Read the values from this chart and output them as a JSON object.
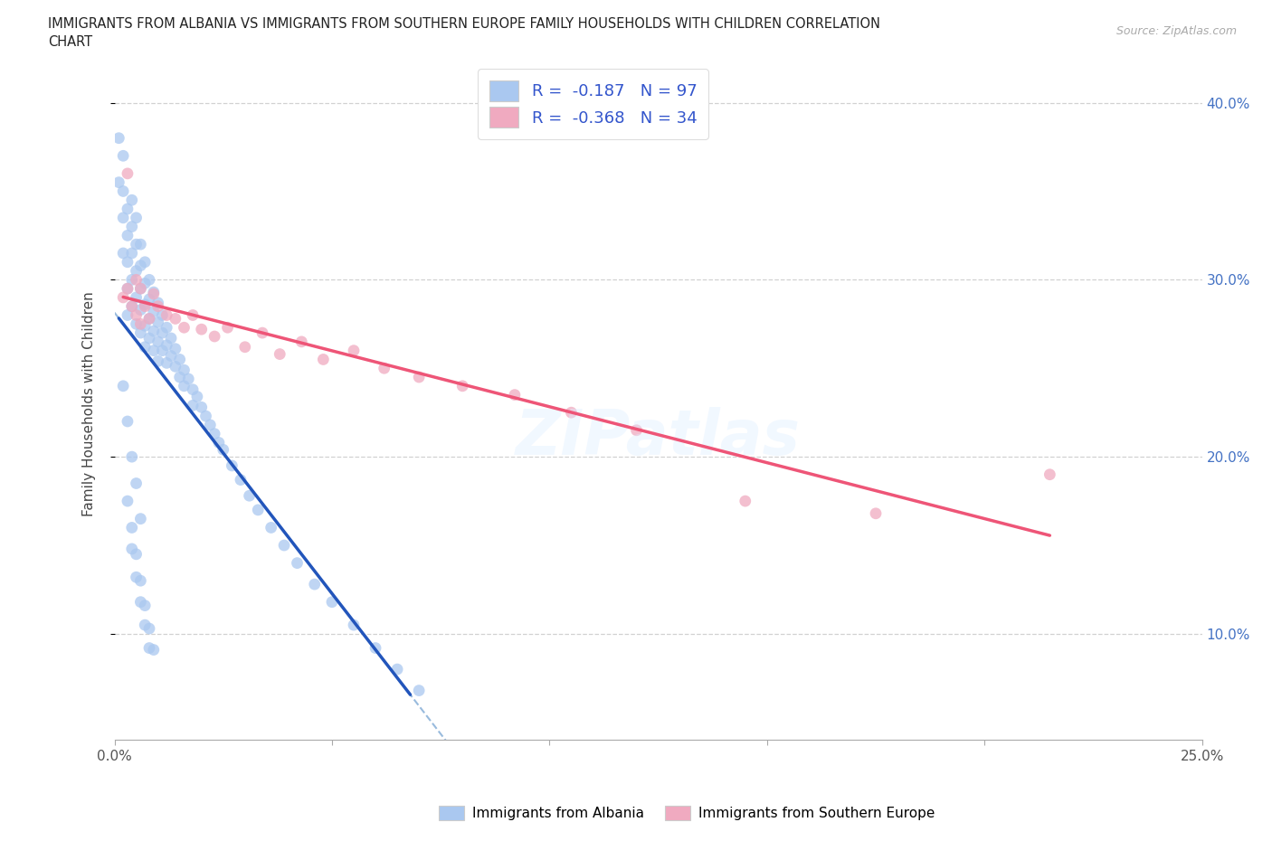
{
  "title_line1": "IMMIGRANTS FROM ALBANIA VS IMMIGRANTS FROM SOUTHERN EUROPE FAMILY HOUSEHOLDS WITH CHILDREN CORRELATION",
  "title_line2": "CHART",
  "source": "Source: ZipAtlas.com",
  "ylabel": "Family Households with Children",
  "xlim": [
    0.0,
    0.25
  ],
  "ylim": [
    0.04,
    0.42
  ],
  "albania_R": -0.187,
  "albania_N": 97,
  "southern_R": -0.368,
  "southern_N": 34,
  "albania_color": "#aac8f0",
  "southern_color": "#f0aac0",
  "albania_line_color": "#2255bb",
  "southern_line_color": "#ee5577",
  "dashed_color": "#99bbdd",
  "legend_label_albania": "Immigrants from Albania",
  "legend_label_southern": "Immigrants from Southern Europe",
  "albania_x": [
    0.001,
    0.001,
    0.002,
    0.002,
    0.002,
    0.002,
    0.003,
    0.003,
    0.003,
    0.003,
    0.003,
    0.004,
    0.004,
    0.004,
    0.004,
    0.004,
    0.005,
    0.005,
    0.005,
    0.005,
    0.005,
    0.006,
    0.006,
    0.006,
    0.006,
    0.006,
    0.007,
    0.007,
    0.007,
    0.007,
    0.007,
    0.008,
    0.008,
    0.008,
    0.008,
    0.009,
    0.009,
    0.009,
    0.009,
    0.01,
    0.01,
    0.01,
    0.01,
    0.011,
    0.011,
    0.011,
    0.012,
    0.012,
    0.012,
    0.013,
    0.013,
    0.014,
    0.014,
    0.015,
    0.015,
    0.016,
    0.016,
    0.017,
    0.018,
    0.018,
    0.019,
    0.02,
    0.021,
    0.022,
    0.023,
    0.024,
    0.025,
    0.027,
    0.029,
    0.031,
    0.033,
    0.036,
    0.039,
    0.042,
    0.046,
    0.05,
    0.055,
    0.06,
    0.065,
    0.07,
    0.002,
    0.003,
    0.004,
    0.005,
    0.006,
    0.004,
    0.005,
    0.006,
    0.007,
    0.008,
    0.003,
    0.004,
    0.005,
    0.006,
    0.007,
    0.008,
    0.009
  ],
  "albania_y": [
    0.38,
    0.355,
    0.37,
    0.35,
    0.335,
    0.315,
    0.34,
    0.325,
    0.31,
    0.295,
    0.28,
    0.345,
    0.33,
    0.315,
    0.3,
    0.285,
    0.335,
    0.32,
    0.305,
    0.29,
    0.275,
    0.32,
    0.308,
    0.295,
    0.283,
    0.27,
    0.31,
    0.298,
    0.286,
    0.274,
    0.262,
    0.3,
    0.289,
    0.278,
    0.267,
    0.293,
    0.282,
    0.271,
    0.26,
    0.287,
    0.276,
    0.265,
    0.254,
    0.28,
    0.27,
    0.26,
    0.273,
    0.263,
    0.253,
    0.267,
    0.257,
    0.261,
    0.251,
    0.255,
    0.245,
    0.249,
    0.24,
    0.244,
    0.238,
    0.229,
    0.234,
    0.228,
    0.223,
    0.218,
    0.213,
    0.208,
    0.204,
    0.195,
    0.187,
    0.178,
    0.17,
    0.16,
    0.15,
    0.14,
    0.128,
    0.118,
    0.105,
    0.092,
    0.08,
    0.068,
    0.24,
    0.22,
    0.2,
    0.185,
    0.165,
    0.148,
    0.132,
    0.118,
    0.105,
    0.092,
    0.175,
    0.16,
    0.145,
    0.13,
    0.116,
    0.103,
    0.091
  ],
  "southern_x": [
    0.002,
    0.003,
    0.003,
    0.004,
    0.005,
    0.005,
    0.006,
    0.006,
    0.007,
    0.008,
    0.009,
    0.01,
    0.012,
    0.014,
    0.016,
    0.018,
    0.02,
    0.023,
    0.026,
    0.03,
    0.034,
    0.038,
    0.043,
    0.048,
    0.055,
    0.062,
    0.07,
    0.08,
    0.092,
    0.105,
    0.12,
    0.145,
    0.175,
    0.215
  ],
  "southern_y": [
    0.29,
    0.36,
    0.295,
    0.285,
    0.3,
    0.28,
    0.295,
    0.275,
    0.285,
    0.278,
    0.292,
    0.285,
    0.28,
    0.278,
    0.273,
    0.28,
    0.272,
    0.268,
    0.273,
    0.262,
    0.27,
    0.258,
    0.265,
    0.255,
    0.26,
    0.25,
    0.245,
    0.24,
    0.235,
    0.225,
    0.215,
    0.175,
    0.168,
    0.19
  ]
}
